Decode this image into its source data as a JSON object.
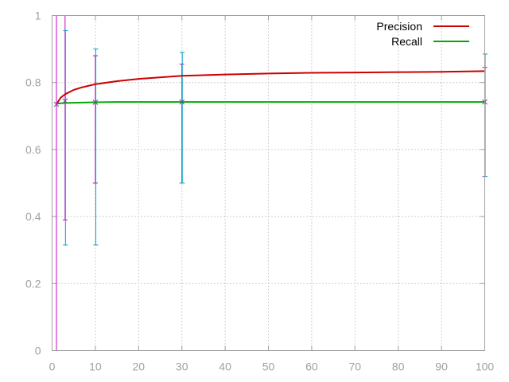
{
  "chart_data": {
    "type": "line",
    "title": "",
    "xlabel": "",
    "ylabel": "",
    "xlim": [
      0,
      100
    ],
    "ylim": [
      0,
      1
    ],
    "x_ticks": [
      "0",
      "10",
      "20",
      "30",
      "40",
      "50",
      "60",
      "70",
      "80",
      "90",
      "100"
    ],
    "y_ticks": [
      "0",
      "0.2",
      "0.4",
      "0.6",
      "0.8",
      "1"
    ],
    "grid": true,
    "legend_position": "top-right",
    "series": [
      {
        "name": "Precision",
        "color": "#cc0000",
        "x": [
          1,
          2,
          3,
          5,
          7,
          10,
          15,
          20,
          30,
          40,
          50,
          60,
          70,
          80,
          90,
          100
        ],
        "y": [
          0.735,
          0.755,
          0.765,
          0.778,
          0.786,
          0.795,
          0.804,
          0.811,
          0.82,
          0.824,
          0.827,
          0.829,
          0.83,
          0.831,
          0.832,
          0.834
        ]
      },
      {
        "name": "Recall",
        "color": "#00aa00",
        "x": [
          1,
          3,
          10,
          15,
          30,
          50,
          100
        ],
        "y": [
          0.737,
          0.739,
          0.741,
          0.742,
          0.742,
          0.742,
          0.742
        ]
      }
    ],
    "error_bars": [
      {
        "name": "precision-error",
        "color": "#cc00cc",
        "points": [
          {
            "x": 1,
            "y": 0.735,
            "low": 0.0,
            "high": 1.0
          },
          {
            "x": 3,
            "y": 0.76,
            "low": 0.39,
            "high": 1.0
          },
          {
            "x": 10,
            "y": 0.795,
            "low": 0.5,
            "high": 0.88
          },
          {
            "x": 30,
            "y": 0.82,
            "low": 0.5,
            "high": 0.855
          },
          {
            "x": 100,
            "y": 0.834,
            "low": 0.52,
            "high": 0.845
          }
        ]
      },
      {
        "name": "recall-error",
        "color": "#00a0c0",
        "points": [
          {
            "x": 3,
            "y": 0.739,
            "low": 0.315,
            "high": 0.955
          },
          {
            "x": 10,
            "y": 0.741,
            "low": 0.315,
            "high": 0.9
          },
          {
            "x": 30,
            "y": 0.742,
            "low": 0.5,
            "high": 0.89
          },
          {
            "x": 100,
            "y": 0.742,
            "low": 0.52,
            "high": 0.885
          }
        ]
      }
    ],
    "markers": [
      {
        "x": 1,
        "y": 0.735
      },
      {
        "x": 3,
        "y": 0.745
      },
      {
        "x": 10,
        "y": 0.741
      },
      {
        "x": 30,
        "y": 0.742
      },
      {
        "x": 100,
        "y": 0.742
      }
    ]
  }
}
